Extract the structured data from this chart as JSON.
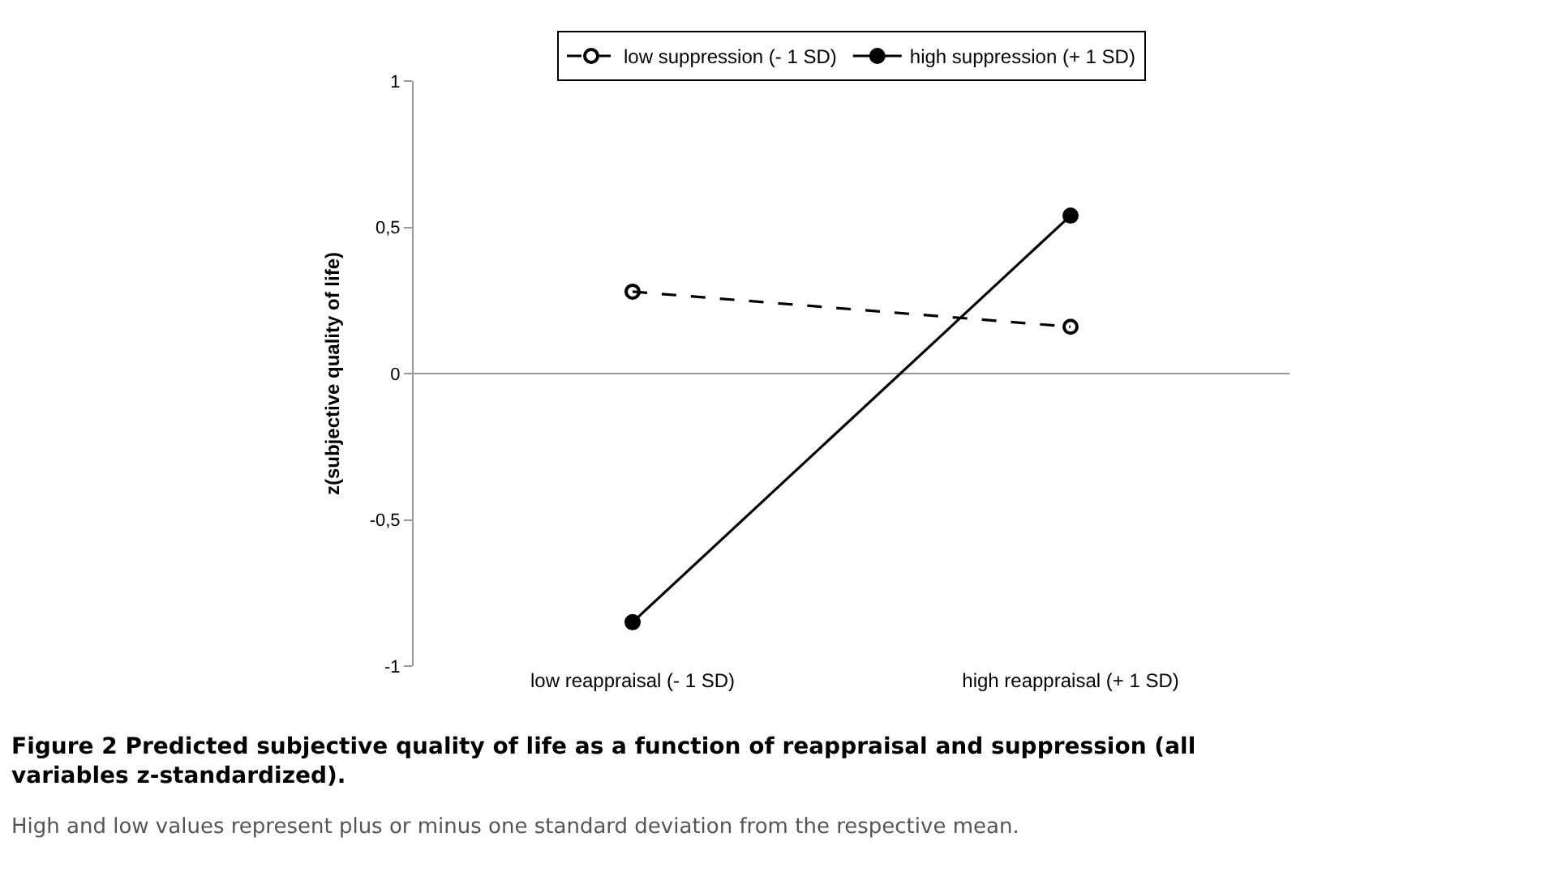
{
  "chart_data": {
    "type": "line",
    "title": "Figure 2 Predicted subjective quality of life as a function of reappraisal and suppression (all variables z-standardized).",
    "annotations": [
      "High and low values represent plus or minus one standard deviation from the respective mean."
    ],
    "ylabel": "z(subjective quality of life)",
    "categories": [
      "low reappraisal (- 1 SD)",
      "high reappraisal (+ 1 SD)"
    ],
    "series": [
      {
        "name": "low suppression (- 1 SD)",
        "color": "#000000",
        "values": [
          0.28,
          0.16
        ],
        "line_style": "dashed",
        "marker": "circle-open"
      },
      {
        "name": "high suppression (+ 1 SD)",
        "color": "#000000",
        "values": [
          -0.85,
          0.54
        ],
        "line_style": "solid",
        "marker": "circle"
      }
    ],
    "ylim": [
      -1,
      1
    ],
    "yticks": [
      {
        "value": -1,
        "label": "-1"
      },
      {
        "value": -0.5,
        "label": "-0,5"
      },
      0,
      {
        "value": 0.5,
        "label": "0,5"
      },
      1
    ],
    "grid": false,
    "ref_lines": [
      {
        "axis": "y",
        "value": 0,
        "color": "#999999"
      }
    ],
    "legend": "top"
  }
}
